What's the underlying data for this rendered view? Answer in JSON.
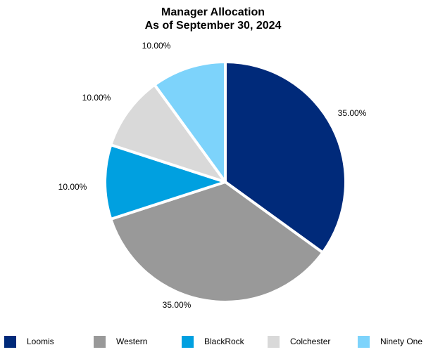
{
  "chart_data": {
    "type": "pie",
    "title": "Manager Allocation",
    "subtitle": "As of September 30, 2024",
    "slices": [
      {
        "label": "Loomis",
        "value": 35.0,
        "display": "35.00%",
        "color": "#002a7a"
      },
      {
        "label": "Western",
        "value": 35.0,
        "display": "35.00%",
        "color": "#999999"
      },
      {
        "label": "BlackRock",
        "value": 10.0,
        "display": "10.00%",
        "color": "#00a0e0"
      },
      {
        "label": "Colchester",
        "value": 10.0,
        "display": "10.00%",
        "color": "#d9d9d9"
      },
      {
        "label": "Ninety One",
        "value": 10.0,
        "display": "10.00%",
        "color": "#7dd3fb"
      }
    ],
    "start": "12 o'clock",
    "direction": "clockwise",
    "legend_position": "bottom"
  }
}
